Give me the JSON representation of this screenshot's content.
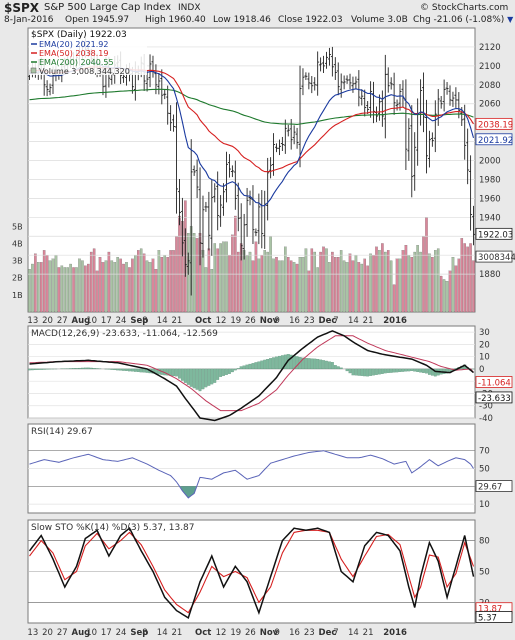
{
  "header": {
    "symbol": "$SPX",
    "name": "S&P 500 Large Cap Index",
    "exchange": "INDX",
    "copyright": "© StockCharts.com",
    "date": "8-Jan-2016",
    "open": "Open 1945.97",
    "high": "High 1960.40",
    "low": "Low 1918.46",
    "close": "Close 1922.03",
    "volume": "Volume 3.0B",
    "chg": "Chg -21.06 (-1.08%)",
    "chg_arrow": "▼"
  },
  "chart_data": [
    {
      "id": "price",
      "type": "ohlc",
      "legend": {
        "main": "$SPX (Daily) 1922.03",
        "ema20": "EMA(20) 2021.92",
        "ema50": "EMA(50) 2038.19",
        "ema200": "EMA(200) 2040.55",
        "volume": "Volume 3,008,344,320"
      },
      "colors": {
        "price": "#222222",
        "ema20": "#1a3a9f",
        "ema50": "#d62020",
        "ema200": "#1f7a2e",
        "vol_up": "#a9c3a5",
        "vol_down": "#d9879a"
      },
      "ylim": [
        1840,
        2140
      ],
      "yticks": [
        1880,
        1900,
        1920,
        1940,
        1960,
        1980,
        2000,
        2020,
        2040,
        2060,
        2080,
        2100,
        2120
      ],
      "ylabels": [
        "1880",
        "1900",
        "",
        "1940",
        "1960",
        "1980",
        "2000",
        "2020",
        "2040",
        "2060",
        "2080",
        "2100",
        "2120"
      ],
      "vol_ticks": [
        "1B",
        "2B",
        "3B",
        "4B",
        "5B"
      ],
      "vol_max": 7,
      "right_tags": [
        {
          "text": "2038.19",
          "y": 2038.19,
          "color": "#d62020"
        },
        {
          "text": "2021.92",
          "y": 2021.92,
          "color": "#1a3a9f"
        },
        {
          "text": "1922.03",
          "y": 1922.03,
          "color": "#222222"
        },
        {
          "text": "3008344",
          "y": 1898,
          "color": "#333333"
        }
      ],
      "closes": [
        2092,
        2098,
        2095,
        2100,
        2093,
        2080,
        2075,
        2077,
        2090,
        2093,
        2090,
        2096,
        2101,
        2105,
        2106,
        2103,
        2109,
        2115,
        2120,
        2117,
        2116,
        2108,
        2101,
        2097,
        2094,
        2078,
        2097,
        2087,
        2093,
        2101,
        2104,
        2090,
        2089,
        2093,
        2091,
        2078,
        2093,
        2092,
        2103,
        2084,
        2086,
        2102,
        2094,
        2080,
        2084,
        2069,
        2070,
        2050,
        2040,
        2036,
        1970,
        1945,
        1913,
        1890,
        1894,
        1988,
        1988,
        1972,
        1913,
        1948,
        1951,
        1921,
        1961,
        1970,
        1942,
        1953,
        1967,
        1996,
        1991,
        1989,
        1960,
        1939,
        1910,
        1932,
        1958,
        1960,
        1927,
        1924,
        1951,
        1923,
        1954,
        1987,
        1995,
        2017,
        2013,
        2015,
        2017,
        2034,
        2032,
        2022,
        2030,
        2019,
        2076,
        2088,
        2089,
        2082,
        2079,
        2080,
        2104,
        2102,
        2100,
        2109,
        2112,
        2099,
        2093,
        2078,
        2083,
        2083,
        2085,
        2082,
        2081,
        2083,
        2067,
        2068,
        2056,
        2054,
        2073,
        2052,
        2047,
        2062,
        2047,
        2091,
        2079,
        2081,
        2061,
        2059,
        2073,
        2066,
        2012,
        2034,
        1983,
        2014,
        2049,
        2074,
        2046,
        2005,
        2022,
        2021,
        2049,
        2065,
        2060,
        2075,
        2076,
        2064,
        2066,
        2064,
        2053,
        2043,
        2016,
        1990,
        1943,
        1922
      ],
      "volumes": [
        2.5,
        2.8,
        3.4,
        2.9,
        2.9,
        3.6,
        3.3,
        3.0,
        3.1,
        3.3,
        2.6,
        2.7,
        2.6,
        2.6,
        2.8,
        2.6,
        2.6,
        3.1,
        3.0,
        2.7,
        2.8,
        3.5,
        3.7,
        2.4,
        3.2,
        2.9,
        3.0,
        3.5,
        3.0,
        2.9,
        3.2,
        3.1,
        2.8,
        2.9,
        2.6,
        3.1,
        3.3,
        3.6,
        3.7,
        3.4,
        3.0,
        2.9,
        3.1,
        2.5,
        3.6,
        3.2,
        3.3,
        3.2,
        3.6,
        3.6,
        4.4,
        5.6,
        5.3,
        6.5,
        4.6,
        5.0,
        4.6,
        4.3,
        4.6,
        3.6,
        2.6,
        3.7,
        2.5,
        4.0,
        3.7,
        4.0,
        4.1,
        4.1,
        3.3,
        4.5,
        5.6,
        3.5,
        4.0,
        3.6,
        3.3,
        3.5,
        3.0,
        4.1,
        3.1,
        3.3,
        3.6,
        3.5,
        4.4,
        3.1,
        3.2,
        3.0,
        3.0,
        3.8,
        3.2,
        3.0,
        2.9,
        2.8,
        3.2,
        3.2,
        3.7,
        2.4,
        3.7,
        3.5,
        2.6,
        3.5,
        3.8,
        3.7,
        2.9,
        3.5,
        3.2,
        3.2,
        3.6,
        3.0,
        2.9,
        3.4,
        3.0,
        3.3,
        2.9,
        2.8,
        3.1,
        2.7,
        3.4,
        3.3,
        3.8,
        3.6,
        4.0,
        3.5,
        3.6,
        3.0,
        1.6,
        3.1,
        3.1,
        3.6,
        3.9,
        3.3,
        3.2,
        3.5,
        3.9,
        3.5,
        4.4,
        5.5,
        3.4,
        3.2,
        3.6,
        3.7,
        2.1,
        1.9,
        1.8,
        2.4,
        3.2,
        2.7,
        3.1,
        4.3,
        4.0,
        3.8,
        4.0,
        3.0
      ]
    },
    {
      "id": "macd",
      "type": "line",
      "legend": "MACD(12,26,9) -23.633, -11.064, -12.569",
      "ylim": [
        -40,
        35
      ],
      "ylabels": [
        "30",
        "20",
        "10",
        "0",
        "-10",
        "-20",
        "-30",
        "-40"
      ],
      "right_tags": [
        {
          "text": "-11.064",
          "y": -11.064,
          "color": "#d62020"
        },
        {
          "text": "-23.633",
          "y": -23.633,
          "color": "#111111"
        }
      ],
      "colors": {
        "macd": "#111111",
        "signal": "#c0395a",
        "hist": "#7eb89d"
      },
      "macd_key": [
        [
          0,
          4
        ],
        [
          10,
          6
        ],
        [
          20,
          7
        ],
        [
          30,
          5
        ],
        [
          40,
          0
        ],
        [
          46,
          -8
        ],
        [
          50,
          -14
        ],
        [
          53,
          -24
        ],
        [
          58,
          -40
        ],
        [
          63,
          -42
        ],
        [
          68,
          -38
        ],
        [
          72,
          -32
        ],
        [
          78,
          -22
        ],
        [
          84,
          -7
        ],
        [
          88,
          7
        ],
        [
          93,
          17
        ],
        [
          98,
          26
        ],
        [
          103,
          31
        ],
        [
          107,
          27
        ],
        [
          110,
          22
        ],
        [
          115,
          15
        ],
        [
          120,
          12
        ],
        [
          125,
          10
        ],
        [
          130,
          8
        ],
        [
          135,
          3
        ],
        [
          138,
          -2
        ],
        [
          143,
          -3
        ],
        [
          148,
          3
        ],
        [
          151,
          -3
        ],
        [
          153,
          -15
        ],
        [
          154,
          -24
        ]
      ],
      "signal_key": [
        [
          0,
          5
        ],
        [
          10,
          6
        ],
        [
          20,
          6
        ],
        [
          30,
          6
        ],
        [
          40,
          3
        ],
        [
          46,
          -3
        ],
        [
          50,
          -8
        ],
        [
          55,
          -16
        ],
        [
          60,
          -26
        ],
        [
          65,
          -34
        ],
        [
          72,
          -34
        ],
        [
          78,
          -28
        ],
        [
          84,
          -17
        ],
        [
          88,
          -5
        ],
        [
          93,
          8
        ],
        [
          98,
          18
        ],
        [
          104,
          27
        ],
        [
          110,
          27
        ],
        [
          115,
          21
        ],
        [
          121,
          15
        ],
        [
          126,
          12
        ],
        [
          131,
          9
        ],
        [
          136,
          6
        ],
        [
          140,
          2
        ],
        [
          145,
          -1
        ],
        [
          150,
          0
        ],
        [
          154,
          -11
        ]
      ]
    },
    {
      "id": "rsi",
      "type": "line",
      "legend": "RSI(14) 29.67",
      "ylim": [
        0,
        100
      ],
      "ylabels": [
        "70",
        "50",
        "30",
        "10"
      ],
      "right_tags": [
        {
          "text": "29.67",
          "y": 29.67,
          "color": "#333333"
        }
      ],
      "colors": {
        "line": "#5a64b8",
        "oversold": "#5e9f8f"
      },
      "rsi_key": [
        [
          0,
          55
        ],
        [
          5,
          60
        ],
        [
          10,
          57
        ],
        [
          15,
          62
        ],
        [
          20,
          66
        ],
        [
          25,
          60
        ],
        [
          30,
          58
        ],
        [
          35,
          62
        ],
        [
          40,
          55
        ],
        [
          44,
          48
        ],
        [
          48,
          42
        ],
        [
          50,
          35
        ],
        [
          52,
          25
        ],
        [
          54,
          17
        ],
        [
          56,
          22
        ],
        [
          58,
          40
        ],
        [
          62,
          38
        ],
        [
          66,
          45
        ],
        [
          70,
          48
        ],
        [
          74,
          38
        ],
        [
          78,
          42
        ],
        [
          82,
          56
        ],
        [
          86,
          60
        ],
        [
          90,
          64
        ],
        [
          95,
          68
        ],
        [
          100,
          70
        ],
        [
          104,
          66
        ],
        [
          108,
          62
        ],
        [
          112,
          62
        ],
        [
          116,
          65
        ],
        [
          120,
          61
        ],
        [
          124,
          55
        ],
        [
          128,
          58
        ],
        [
          130,
          45
        ],
        [
          133,
          52
        ],
        [
          136,
          60
        ],
        [
          139,
          53
        ],
        [
          142,
          58
        ],
        [
          145,
          62
        ],
        [
          148,
          60
        ],
        [
          150,
          55
        ],
        [
          152,
          45
        ],
        [
          154,
          30
        ]
      ]
    },
    {
      "id": "sto",
      "type": "line",
      "legend": "Slow STO %K(14) %D(3) 5.37, 13.87",
      "ylim": [
        0,
        100
      ],
      "ylabels": [
        "80",
        "50",
        "20"
      ],
      "right_tags": [
        {
          "text": "13.87",
          "y": 13.87,
          "color": "#d62020"
        },
        {
          "text": "5.37",
          "y": 5.37,
          "color": "#111111"
        }
      ],
      "colors": {
        "k": "#111111",
        "d": "#d62020"
      },
      "k_key": [
        [
          0,
          70
        ],
        [
          4,
          85
        ],
        [
          8,
          62
        ],
        [
          12,
          35
        ],
        [
          16,
          55
        ],
        [
          19,
          82
        ],
        [
          23,
          90
        ],
        [
          27,
          65
        ],
        [
          31,
          85
        ],
        [
          34,
          92
        ],
        [
          38,
          70
        ],
        [
          42,
          50
        ],
        [
          46,
          25
        ],
        [
          50,
          12
        ],
        [
          54,
          5
        ],
        [
          58,
          40
        ],
        [
          62,
          65
        ],
        [
          66,
          35
        ],
        [
          70,
          55
        ],
        [
          74,
          40
        ],
        [
          78,
          10
        ],
        [
          82,
          45
        ],
        [
          86,
          80
        ],
        [
          90,
          92
        ],
        [
          94,
          90
        ],
        [
          98,
          92
        ],
        [
          102,
          88
        ],
        [
          106,
          50
        ],
        [
          110,
          40
        ],
        [
          114,
          75
        ],
        [
          118,
          88
        ],
        [
          122,
          85
        ],
        [
          126,
          70
        ],
        [
          129,
          35
        ],
        [
          131,
          15
        ],
        [
          133,
          45
        ],
        [
          136,
          78
        ],
        [
          139,
          60
        ],
        [
          142,
          25
        ],
        [
          145,
          55
        ],
        [
          148,
          85
        ],
        [
          151,
          45
        ],
        [
          154,
          5
        ]
      ],
      "d_key": [
        [
          0,
          65
        ],
        [
          4,
          80
        ],
        [
          8,
          68
        ],
        [
          12,
          42
        ],
        [
          16,
          50
        ],
        [
          19,
          75
        ],
        [
          23,
          87
        ],
        [
          27,
          72
        ],
        [
          31,
          80
        ],
        [
          34,
          88
        ],
        [
          38,
          76
        ],
        [
          42,
          55
        ],
        [
          46,
          32
        ],
        [
          50,
          18
        ],
        [
          54,
          10
        ],
        [
          58,
          30
        ],
        [
          62,
          55
        ],
        [
          66,
          45
        ],
        [
          70,
          50
        ],
        [
          74,
          44
        ],
        [
          78,
          20
        ],
        [
          82,
          35
        ],
        [
          86,
          68
        ],
        [
          90,
          88
        ],
        [
          94,
          90
        ],
        [
          98,
          90
        ],
        [
          102,
          88
        ],
        [
          106,
          62
        ],
        [
          110,
          45
        ],
        [
          114,
          65
        ],
        [
          118,
          84
        ],
        [
          122,
          86
        ],
        [
          126,
          76
        ],
        [
          129,
          45
        ],
        [
          131,
          25
        ],
        [
          133,
          35
        ],
        [
          136,
          66
        ],
        [
          139,
          64
        ],
        [
          142,
          35
        ],
        [
          145,
          48
        ],
        [
          148,
          78
        ],
        [
          151,
          55
        ],
        [
          154,
          13.87
        ]
      ]
    }
  ],
  "xaxis": {
    "labels": [
      {
        "text": "13",
        "i": 1
      },
      {
        "text": "20",
        "i": 6
      },
      {
        "text": "27",
        "i": 11
      },
      {
        "text": "Aug",
        "i": 16
      },
      {
        "text": "10",
        "i": 21
      },
      {
        "text": "17",
        "i": 26
      },
      {
        "text": "24",
        "i": 31
      },
      {
        "text": "Sep",
        "i": 36
      },
      {
        "text": "8",
        "i": 40
      },
      {
        "text": "14",
        "i": 45
      },
      {
        "text": "21",
        "i": 50
      },
      {
        "text": "Oct",
        "i": 58
      },
      {
        "text": "12",
        "i": 65
      },
      {
        "text": "19",
        "i": 70
      },
      {
        "text": "26",
        "i": 75
      },
      {
        "text": "Nov",
        "i": 80
      },
      {
        "text": "9",
        "i": 85
      },
      {
        "text": "16",
        "i": 90
      },
      {
        "text": "23",
        "i": 95
      },
      {
        "text": "Dec",
        "i": 100
      },
      {
        "text": "7",
        "i": 105
      },
      {
        "text": "14",
        "i": 110
      },
      {
        "text": "21",
        "i": 115
      },
      {
        "text": "2016",
        "i": 122
      }
    ],
    "bold": [
      "Aug",
      "Sep",
      "Oct",
      "Nov",
      "Dec",
      "2016"
    ]
  }
}
